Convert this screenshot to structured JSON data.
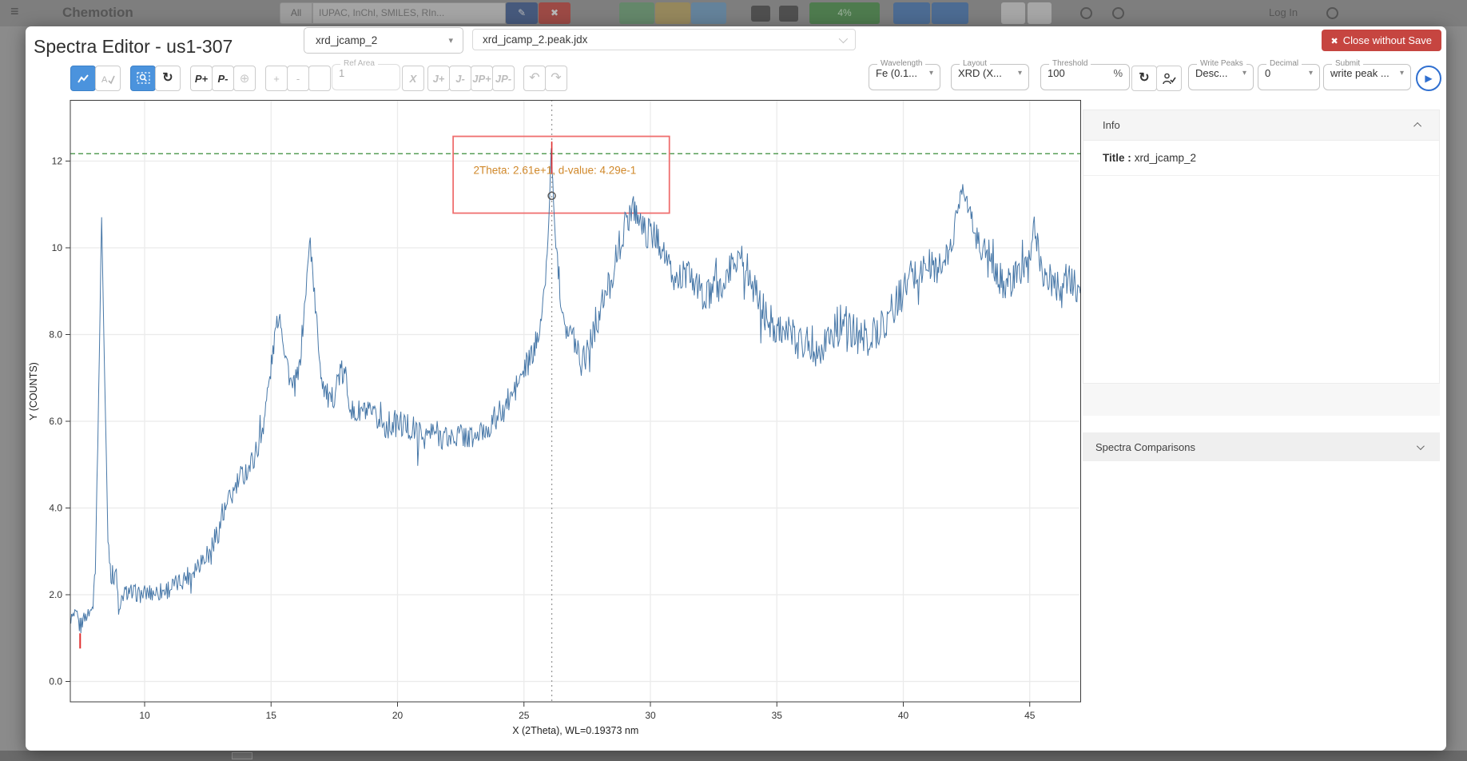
{
  "background": {
    "brand": "Chemotion",
    "search_scope": "All",
    "search_placeholder": "IUPAC, InChI, SMILES, RIn...",
    "usage_badge": "4%",
    "login_label": "Log In"
  },
  "icons": {
    "hamburger": "≡",
    "close": "✖",
    "caret_down": "▾",
    "reset_zoom": "↻",
    "refresh": "↻",
    "pin": "⊕",
    "undo": "↶",
    "redo": "↷",
    "play": "▶"
  },
  "modal": {
    "title": "Spectra Editor - us1-307",
    "spectrum_select_value": "xrd_jcamp_2",
    "file_select_value": "xrd_jcamp_2.peak.jdx",
    "close_button_label": "Close without Save",
    "toolbar": {
      "p_plus": "P+",
      "p_minus": "P-",
      "plus": "+",
      "minus": "-",
      "ref_area_label": "Ref Area",
      "ref_area_value": "1",
      "x_button": "X",
      "j_plus": "J+",
      "j_minus": "J-",
      "jp_plus": "JP+",
      "jp_minus": "JP-",
      "wavelength_label": "Wavelength",
      "wavelength_value": "Fe (0.1...",
      "layout_label": "Layout",
      "layout_value": "XRD (X...",
      "threshold_label": "Threshold",
      "threshold_value": "100",
      "threshold_unit": "%",
      "write_peaks_label": "Write Peaks",
      "write_peaks_value": "Desc...",
      "decimal_label": "Decimal",
      "decimal_value": "0",
      "submit_label": "Submit",
      "submit_value": "write peak ..."
    },
    "panel": {
      "info_header": "Info",
      "title_label": "Title :",
      "title_value": "xrd_jcamp_2",
      "comparisons_header": "Spectra Comparisons"
    }
  },
  "chart_data": {
    "type": "line",
    "title": "",
    "xlabel": "X (2Theta), WL=0.19373 nm",
    "ylabel": "Y (COUNTS)",
    "xlim": [
      7.05,
      47.0
    ],
    "ylim": [
      -0.47,
      13.41
    ],
    "x_ticks": [
      10,
      15,
      20,
      25,
      30,
      35,
      40,
      45
    ],
    "y_tick_values": [
      12,
      10,
      8,
      6,
      4,
      2,
      0
    ],
    "y_tick_labels": [
      "12",
      "10",
      "8.0",
      "6.0",
      "4.0",
      "2.0",
      "0.0"
    ],
    "grid": true,
    "line_color": "#4878a8",
    "threshold_line": {
      "y": 12.17,
      "color": "#3a8c3a"
    },
    "cursor_line": {
      "x": 26.1,
      "color": "#9a9a9a"
    },
    "selected_peak": {
      "x": 26.1,
      "marker_y": 11.2,
      "tick_top": 12.45,
      "tick_bottom": 11.7,
      "label": "2Theta: 2.61e+1, d-value: 4.29e-1",
      "label_color": "#d0882a"
    },
    "negative_marker": {
      "x": 7.45,
      "y_top": 1.11,
      "y_bottom": 0.76,
      "color": "#e03030"
    },
    "zoom_rect": {
      "x1": 22.2,
      "x2": 30.75,
      "y1": 10.8,
      "y2": 12.57,
      "color": "#ef6f6f"
    },
    "envelope": [
      [
        7.05,
        1.45,
        0.15
      ],
      [
        7.3,
        1.5,
        0.18
      ],
      [
        7.45,
        1.25,
        0.25
      ],
      [
        7.6,
        1.45,
        0.15
      ],
      [
        7.9,
        1.65,
        0.15
      ],
      [
        8.05,
        2.6,
        0.12
      ],
      [
        8.18,
        6.5,
        0.1
      ],
      [
        8.3,
        10.75,
        0.06
      ],
      [
        8.42,
        7.0,
        0.1
      ],
      [
        8.55,
        3.3,
        0.15
      ],
      [
        8.7,
        2.35,
        0.3
      ],
      [
        8.85,
        2.6,
        0.3
      ],
      [
        9.0,
        1.5,
        0.25
      ],
      [
        9.15,
        2.0,
        0.2
      ],
      [
        9.4,
        2.1,
        0.18
      ],
      [
        9.8,
        2.0,
        0.2
      ],
      [
        10.3,
        2.05,
        0.22
      ],
      [
        10.8,
        2.1,
        0.25
      ],
      [
        11.3,
        2.25,
        0.22
      ],
      [
        11.8,
        2.5,
        0.25
      ],
      [
        12.3,
        2.85,
        0.25
      ],
      [
        12.8,
        3.3,
        0.3
      ],
      [
        13.3,
        4.1,
        0.3
      ],
      [
        13.8,
        4.7,
        0.3
      ],
      [
        14.2,
        5.0,
        0.3
      ],
      [
        14.6,
        5.6,
        0.3
      ],
      [
        14.95,
        7.0,
        0.3
      ],
      [
        15.2,
        8.2,
        0.2
      ],
      [
        15.35,
        8.45,
        0.15
      ],
      [
        15.55,
        7.6,
        0.3
      ],
      [
        15.85,
        6.7,
        0.3
      ],
      [
        16.1,
        7.1,
        0.3
      ],
      [
        16.35,
        8.8,
        0.25
      ],
      [
        16.55,
        10.3,
        0.12
      ],
      [
        16.75,
        8.6,
        0.3
      ],
      [
        17.0,
        7.0,
        0.3
      ],
      [
        17.35,
        6.35,
        0.3
      ],
      [
        17.7,
        7.1,
        0.35
      ],
      [
        17.95,
        7.0,
        0.35
      ],
      [
        18.25,
        6.1,
        0.3
      ],
      [
        18.6,
        6.25,
        0.3
      ],
      [
        19.0,
        6.1,
        0.3
      ],
      [
        19.5,
        5.9,
        0.32
      ],
      [
        20.0,
        5.95,
        0.32
      ],
      [
        20.5,
        5.85,
        0.35
      ],
      [
        21.0,
        5.65,
        0.3
      ],
      [
        21.5,
        5.75,
        0.32
      ],
      [
        22.0,
        5.6,
        0.32
      ],
      [
        22.5,
        5.7,
        0.3
      ],
      [
        23.0,
        5.6,
        0.3
      ],
      [
        23.5,
        5.8,
        0.3
      ],
      [
        24.0,
        6.15,
        0.32
      ],
      [
        24.5,
        6.55,
        0.35
      ],
      [
        25.0,
        7.15,
        0.35
      ],
      [
        25.4,
        7.6,
        0.3
      ],
      [
        25.75,
        8.6,
        0.25
      ],
      [
        25.95,
        10.1,
        0.15
      ],
      [
        26.08,
        12.3,
        0.06
      ],
      [
        26.2,
        10.6,
        0.2
      ],
      [
        26.45,
        8.9,
        0.3
      ],
      [
        26.7,
        8.1,
        0.3
      ],
      [
        27.0,
        7.9,
        0.35
      ],
      [
        27.3,
        7.4,
        0.45
      ],
      [
        27.6,
        7.9,
        0.4
      ],
      [
        28.0,
        8.5,
        0.4
      ],
      [
        28.4,
        9.2,
        0.4
      ],
      [
        28.8,
        10.1,
        0.38
      ],
      [
        29.15,
        10.75,
        0.35
      ],
      [
        29.3,
        11.0,
        0.3
      ],
      [
        29.45,
        10.8,
        0.32
      ],
      [
        29.8,
        10.35,
        0.35
      ],
      [
        30.15,
        10.3,
        0.35
      ],
      [
        30.5,
        10.0,
        0.35
      ],
      [
        30.9,
        9.2,
        0.35
      ],
      [
        31.3,
        9.4,
        0.4
      ],
      [
        31.7,
        9.25,
        0.38
      ],
      [
        32.1,
        8.85,
        0.4
      ],
      [
        32.5,
        8.95,
        0.4
      ],
      [
        32.9,
        9.15,
        0.4
      ],
      [
        33.3,
        9.7,
        0.38
      ],
      [
        33.55,
        9.85,
        0.35
      ],
      [
        33.9,
        9.4,
        0.4
      ],
      [
        34.3,
        8.75,
        0.4
      ],
      [
        34.7,
        8.3,
        0.42
      ],
      [
        35.1,
        8.2,
        0.45
      ],
      [
        35.6,
        7.95,
        0.45
      ],
      [
        36.1,
        7.85,
        0.48
      ],
      [
        36.6,
        7.7,
        0.5
      ],
      [
        37.1,
        7.95,
        0.45
      ],
      [
        37.55,
        8.3,
        0.5
      ],
      [
        38.0,
        8.05,
        0.45
      ],
      [
        38.5,
        7.9,
        0.45
      ],
      [
        39.0,
        8.1,
        0.45
      ],
      [
        39.5,
        8.5,
        0.45
      ],
      [
        40.0,
        9.0,
        0.45
      ],
      [
        40.5,
        9.4,
        0.42
      ],
      [
        41.0,
        9.6,
        0.45
      ],
      [
        41.5,
        9.5,
        0.4
      ],
      [
        41.9,
        10.0,
        0.35
      ],
      [
        42.15,
        10.9,
        0.25
      ],
      [
        42.35,
        11.45,
        0.12
      ],
      [
        42.55,
        11.0,
        0.25
      ],
      [
        42.85,
        10.3,
        0.3
      ],
      [
        43.25,
        9.8,
        0.35
      ],
      [
        43.65,
        9.3,
        0.4
      ],
      [
        44.1,
        9.2,
        0.4
      ],
      [
        44.55,
        9.35,
        0.4
      ],
      [
        45.0,
        9.55,
        0.42
      ],
      [
        45.18,
        10.55,
        0.3
      ],
      [
        45.5,
        9.45,
        0.4
      ],
      [
        46.0,
        9.1,
        0.4
      ],
      [
        46.5,
        9.3,
        0.42
      ],
      [
        47.0,
        8.95,
        0.35
      ]
    ]
  }
}
